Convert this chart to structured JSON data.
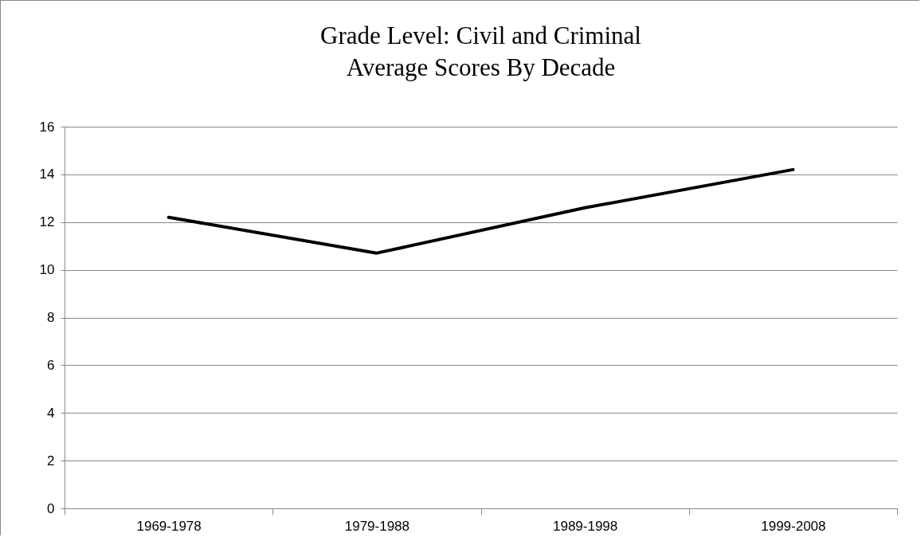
{
  "chart_data": {
    "type": "line",
    "title": [
      "Grade Level:  Civil and Criminal",
      "Average Scores By Decade"
    ],
    "categories": [
      "1969-1978",
      "1979-1988",
      "1989-1998",
      "1999-2008"
    ],
    "series": [
      {
        "color": "#000000",
        "values": [
          12.2,
          10.7,
          12.6,
          14.2
        ]
      }
    ],
    "ylim": [
      0,
      16
    ],
    "yticks": [
      0,
      2,
      4,
      6,
      8,
      10,
      12,
      14,
      16
    ],
    "grid": "y",
    "marker": "none",
    "line_style": "solid"
  }
}
